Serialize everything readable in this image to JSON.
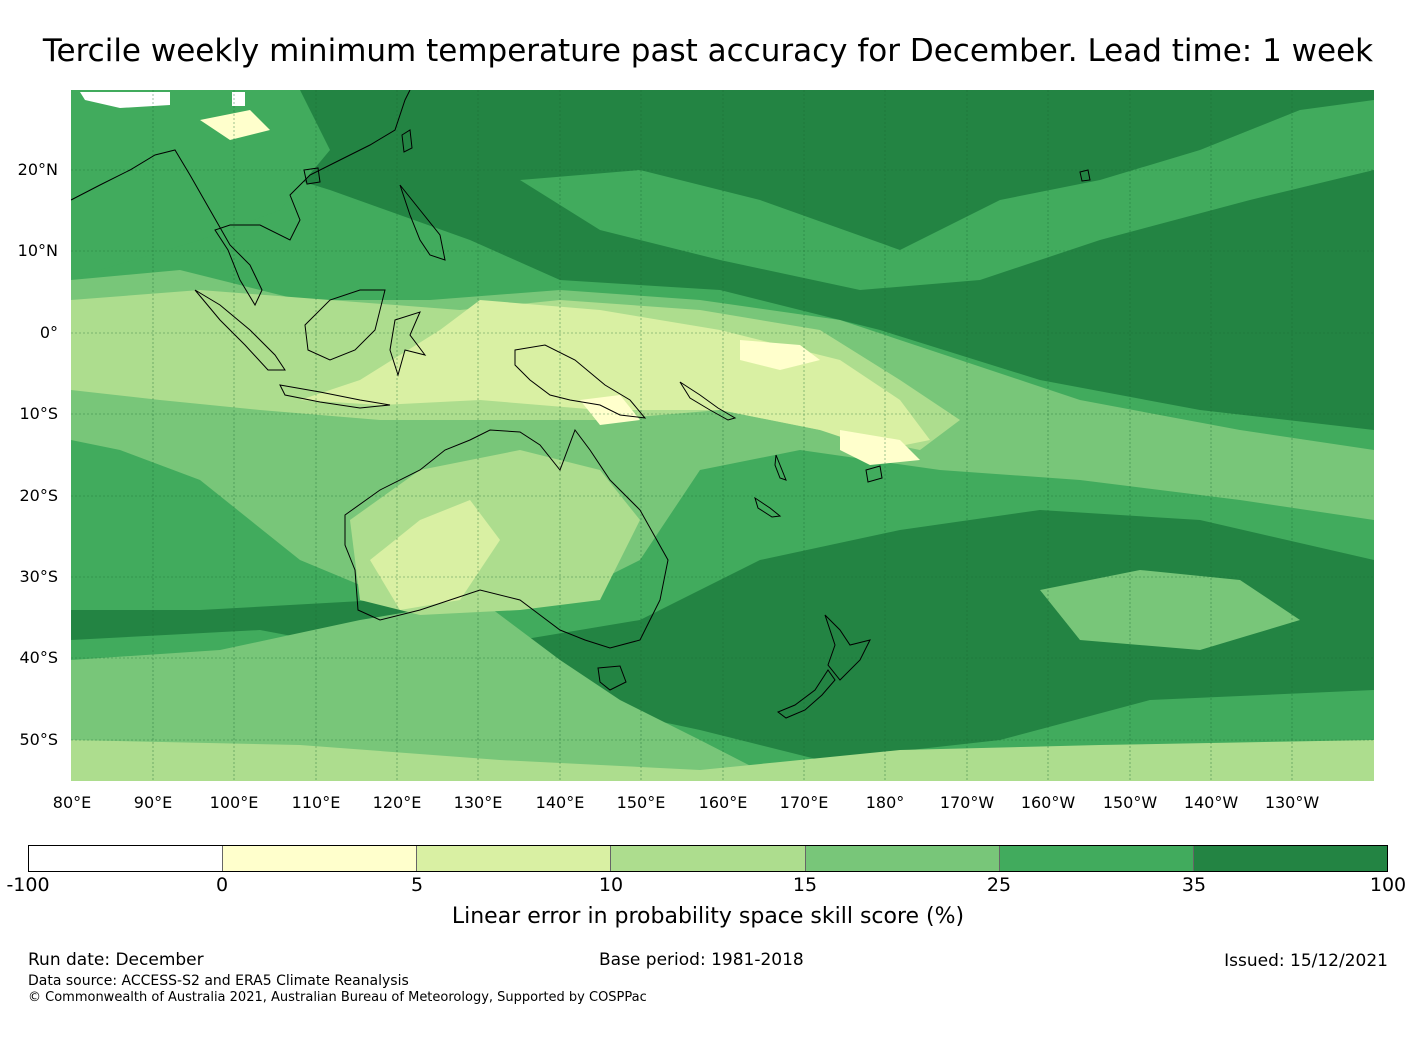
{
  "title": "Tercile weekly minimum temperature past accuracy for December. Lead time: 1 week",
  "map": {
    "lat_labels": [
      "20°N",
      "10°N",
      "0°",
      "10°S",
      "20°S",
      "30°S",
      "40°S",
      "50°S"
    ],
    "lon_labels": [
      "80°E",
      "90°E",
      "100°E",
      "110°E",
      "120°E",
      "130°E",
      "140°E",
      "150°E",
      "160°E",
      "170°E",
      "180°",
      "170°W",
      "160°W",
      "150°W",
      "140°W",
      "130°W"
    ],
    "region": "Western and South Pacific, Indonesia, Australia, New Zealand",
    "palette": [
      "#ffffff",
      "#ffffcc",
      "#d9f0a3",
      "#addd8e",
      "#78c679",
      "#41ab5d",
      "#238443"
    ]
  },
  "colorbar": {
    "ticks": [
      "-100",
      "0",
      "5",
      "10",
      "15",
      "25",
      "35",
      "100"
    ],
    "colors": [
      "#ffffff",
      "#ffffcc",
      "#d9f0a3",
      "#addd8e",
      "#78c679",
      "#41ab5d",
      "#238443"
    ],
    "label": "Linear error in probability space skill score (%)"
  },
  "footer": {
    "run_date": "Run date: December",
    "base_period": "Base period: 1981-2018",
    "issued": "Issued: 15/12/2021",
    "data_source": "Data source: ACCESS-S2 and ERA5 Climate Reanalysis",
    "copyright": "© Commonwealth of Australia 2021, Australian Bureau of Meteorology, Supported by COSPPac"
  }
}
